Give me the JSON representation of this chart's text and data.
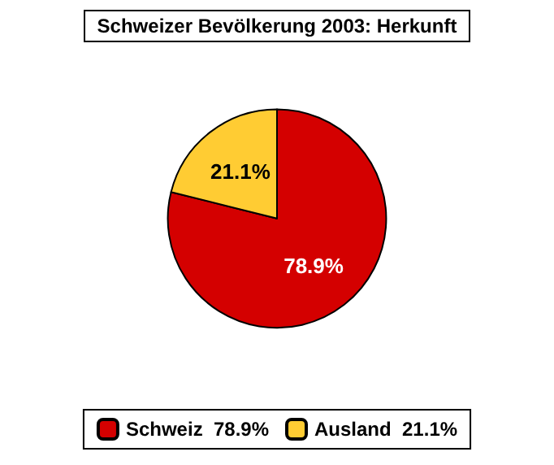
{
  "chart_data": {
    "type": "pie",
    "title": "Schweizer Bevölkerung 2003: Herkunft",
    "categories": [
      "Schweiz",
      "Ausland"
    ],
    "values": [
      78.9,
      21.1
    ],
    "colors": [
      "#d40000",
      "#ffcc33"
    ],
    "value_labels": [
      "78.9%",
      "21.1%"
    ],
    "legend": "bottom"
  }
}
